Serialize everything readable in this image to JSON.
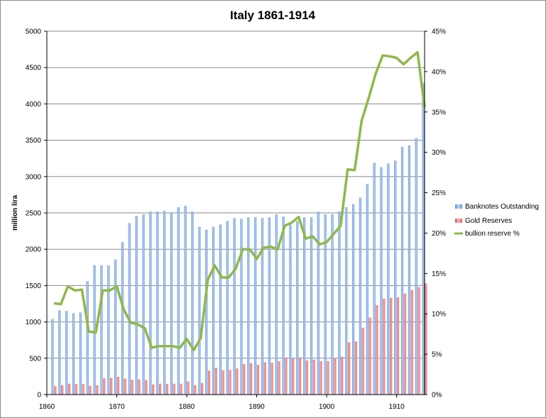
{
  "chart_data": {
    "type": "bar",
    "title": "Italy 1861-1914",
    "xlabel": "",
    "ylabel": "million lira",
    "ylim": [
      0,
      5000
    ],
    "y2lim": [
      0,
      0.45
    ],
    "xlim": [
      1860,
      1914
    ],
    "x_ticks": [
      "1860",
      "1870",
      "1880",
      "1890",
      "1900",
      "1910"
    ],
    "y_ticks": [
      "0",
      "500",
      "1000",
      "1500",
      "2000",
      "2500",
      "3000",
      "3500",
      "4000",
      "4500",
      "5000"
    ],
    "y2_ticks": [
      "0%",
      "5%",
      "10%",
      "15%",
      "20%",
      "25%",
      "30%",
      "35%",
      "40%",
      "45%"
    ],
    "grid": true,
    "legend_position": "right",
    "x": [
      1861,
      1862,
      1863,
      1864,
      1865,
      1866,
      1867,
      1868,
      1869,
      1870,
      1871,
      1872,
      1873,
      1874,
      1875,
      1876,
      1877,
      1878,
      1879,
      1880,
      1881,
      1882,
      1883,
      1884,
      1885,
      1886,
      1887,
      1888,
      1889,
      1890,
      1891,
      1892,
      1893,
      1894,
      1895,
      1896,
      1897,
      1898,
      1899,
      1900,
      1901,
      1902,
      1903,
      1904,
      1905,
      1906,
      1907,
      1908,
      1909,
      1910,
      1911,
      1912,
      1913,
      1914
    ],
    "series": [
      {
        "name": "Banknotes Outstanding",
        "kind": "bar",
        "color": "#7fa7e0",
        "values": [
          1040,
          1160,
          1150,
          1120,
          1130,
          1560,
          1780,
          1780,
          1780,
          1860,
          2100,
          2360,
          2460,
          2480,
          2520,
          2520,
          2530,
          2510,
          2580,
          2600,
          2520,
          2310,
          2270,
          2310,
          2340,
          2390,
          2430,
          2420,
          2440,
          2440,
          2430,
          2440,
          2480,
          2450,
          2340,
          2390,
          2440,
          2440,
          2520,
          2480,
          2480,
          2520,
          2580,
          2620,
          2710,
          2900,
          3190,
          3130,
          3180,
          3220,
          3410,
          3430,
          3530,
          4290
        ]
      },
      {
        "name": "Gold Reserves",
        "kind": "bar",
        "color": "#ec8a8a",
        "values": [
          115,
          130,
          150,
          145,
          145,
          120,
          130,
          225,
          230,
          245,
          220,
          205,
          210,
          200,
          140,
          150,
          145,
          150,
          150,
          180,
          130,
          160,
          330,
          370,
          335,
          340,
          360,
          420,
          430,
          410,
          445,
          440,
          460,
          510,
          500,
          510,
          470,
          480,
          460,
          460,
          500,
          520,
          720,
          730,
          920,
          1060,
          1230,
          1320,
          1330,
          1340,
          1390,
          1440,
          1480,
          1530
        ]
      },
      {
        "name": "bullion reserve %",
        "kind": "line",
        "axis": "secondary",
        "color": "#8fb849",
        "values": [
          0.113,
          0.112,
          0.134,
          0.129,
          0.13,
          0.078,
          0.077,
          0.129,
          0.129,
          0.134,
          0.105,
          0.089,
          0.087,
          0.082,
          0.058,
          0.06,
          0.06,
          0.06,
          0.058,
          0.069,
          0.055,
          0.07,
          0.142,
          0.16,
          0.145,
          0.145,
          0.156,
          0.18,
          0.18,
          0.168,
          0.182,
          0.183,
          0.18,
          0.209,
          0.213,
          0.22,
          0.193,
          0.196,
          0.186,
          0.189,
          0.199,
          0.209,
          0.279,
          0.278,
          0.339,
          0.367,
          0.397,
          0.42,
          0.419,
          0.417,
          0.409,
          0.417,
          0.424,
          0.356
        ]
      }
    ]
  }
}
